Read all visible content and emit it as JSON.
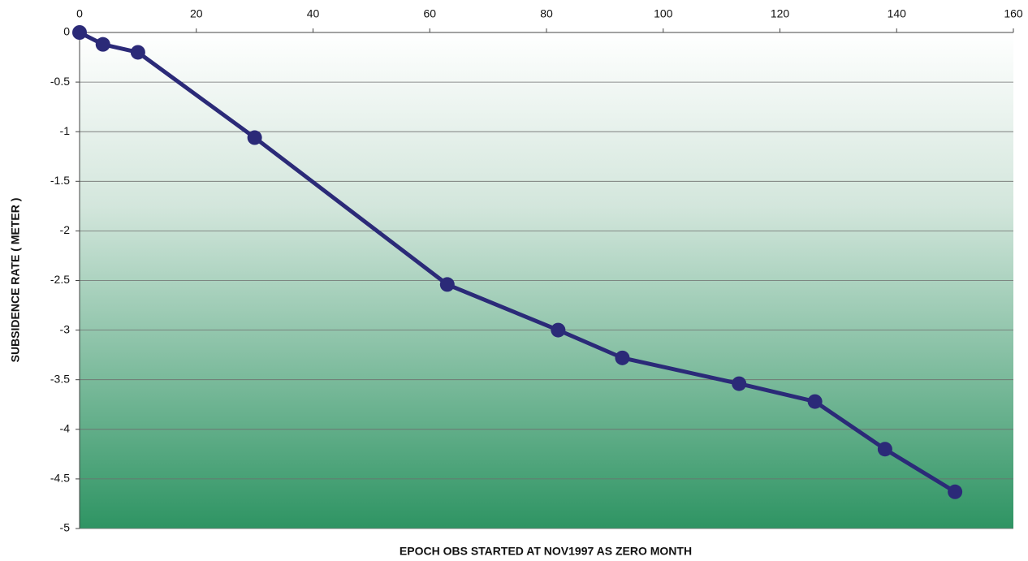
{
  "chart_data": {
    "type": "line",
    "x": [
      0,
      4,
      10,
      30,
      63,
      82,
      93,
      113,
      126,
      138,
      150
    ],
    "values": [
      0,
      -0.12,
      -0.2,
      -1.06,
      -2.54,
      -3.0,
      -3.28,
      -3.54,
      -3.72,
      -4.2,
      -4.63
    ],
    "color": "#2b2a78",
    "xlim": [
      0,
      160
    ],
    "xticks": [
      0,
      20,
      40,
      60,
      80,
      100,
      120,
      140,
      160
    ],
    "ylim": [
      -5,
      0
    ],
    "yticks": [
      0,
      -0.5,
      -1,
      -1.5,
      -2,
      -2.5,
      -3,
      -3.5,
      -4,
      -4.5,
      -5
    ],
    "grid": true,
    "xlabel": "EPOCH OBS STARTED AT NOV1997 AS ZERO MONTH",
    "ylabel": "SUBSIDENCE RATE ( METER )"
  }
}
